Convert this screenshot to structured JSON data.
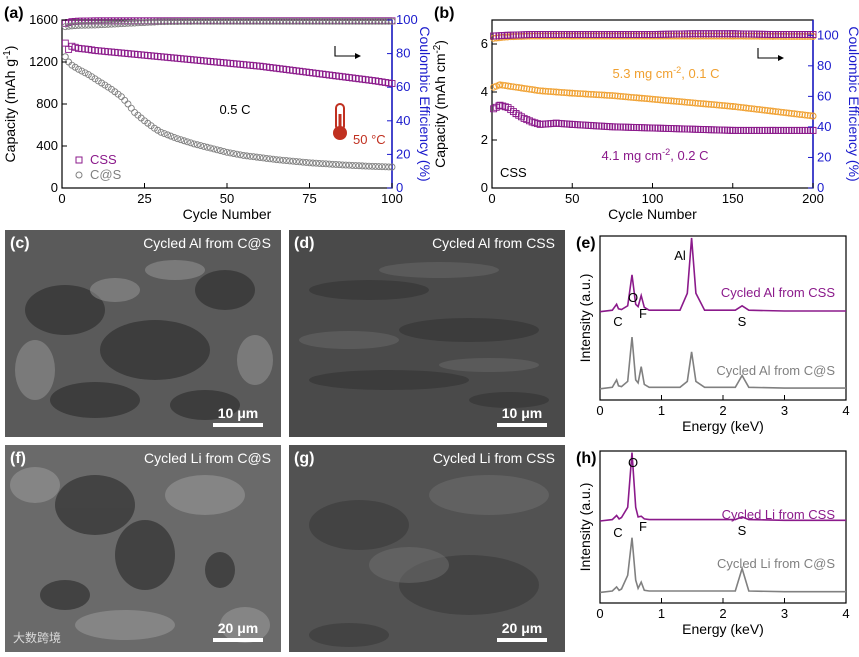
{
  "panel_letters": {
    "a": "(a)",
    "b": "(b)",
    "c": "(c)",
    "d": "(d)",
    "e": "(e)",
    "f": "(f)",
    "g": "(g)",
    "h": "(h)"
  },
  "sem": {
    "c": {
      "label": "Cycled Al from C@S",
      "scale": "10 μm"
    },
    "d": {
      "label": "Cycled Al from CSS",
      "scale": "10 μm"
    },
    "f": {
      "label": "Cycled Li from C@S",
      "scale": "20 μm"
    },
    "g": {
      "label": "Cycled Li from CSS",
      "scale": "20 μm"
    }
  },
  "watermark": "大数跨境",
  "colors": {
    "css": "#8b1a8b",
    "cs": "#808080",
    "orange": "#f0a030",
    "ce_axis": "#1a1acc",
    "temp": "#c03020"
  },
  "chart_data": [
    {
      "id": "a",
      "type": "scatter",
      "xlabel": "Cycle Number",
      "ylabel": "Capacity (mAh g-1)",
      "y2label": "Coulombic Efficiency (%)",
      "xlim": [
        0,
        100
      ],
      "xticks": [
        0,
        25,
        50,
        75,
        100
      ],
      "ylim": [
        0,
        1600
      ],
      "yticks": [
        0,
        400,
        800,
        1200,
        1600
      ],
      "y2lim": [
        0,
        100
      ],
      "y2ticks": [
        0,
        20,
        40,
        60,
        80,
        100
      ],
      "annotations": {
        "rate": "0.5 C",
        "temperature": "50 °C"
      },
      "legend": {
        "position": "bottom-left",
        "items": [
          "CSS",
          "C@S"
        ]
      },
      "series": [
        {
          "name": "CSS",
          "kind": "capacity",
          "marker": "square",
          "x": [
            1,
            2,
            3,
            4,
            5,
            8,
            10,
            15,
            20,
            25,
            30,
            35,
            40,
            45,
            50,
            55,
            60,
            65,
            70,
            75,
            80,
            85,
            90,
            95,
            100
          ],
          "y": [
            1380,
            1320,
            1350,
            1340,
            1330,
            1320,
            1310,
            1295,
            1280,
            1265,
            1250,
            1235,
            1220,
            1205,
            1190,
            1175,
            1160,
            1140,
            1120,
            1100,
            1080,
            1060,
            1040,
            1020,
            995
          ]
        },
        {
          "name": "C@S",
          "kind": "capacity",
          "marker": "circle",
          "x": [
            1,
            2,
            3,
            5,
            8,
            10,
            12,
            15,
            18,
            20,
            22,
            25,
            28,
            30,
            35,
            40,
            45,
            50,
            55,
            60,
            65,
            70,
            75,
            80,
            85,
            90,
            95,
            100
          ],
          "y": [
            1250,
            1200,
            1170,
            1130,
            1080,
            1040,
            1000,
            940,
            870,
            800,
            720,
            640,
            570,
            530,
            470,
            420,
            380,
            340,
            310,
            290,
            270,
            255,
            240,
            230,
            220,
            212,
            205,
            200
          ]
        },
        {
          "name": "CSS",
          "kind": "ce",
          "marker": "square",
          "x": [
            1,
            3,
            5,
            10,
            20,
            30,
            40,
            50,
            60,
            70,
            80,
            90,
            100
          ],
          "y": [
            98,
            99,
            99.3,
            99.5,
            99.5,
            99.5,
            99.5,
            99.5,
            99.5,
            99.5,
            99.5,
            99.5,
            99.5
          ]
        },
        {
          "name": "C@S",
          "kind": "ce",
          "marker": "circle",
          "x": [
            1,
            3,
            5,
            10,
            15,
            20,
            25,
            30,
            40,
            50,
            60,
            70,
            80,
            90,
            100
          ],
          "y": [
            96,
            96.5,
            96.8,
            97,
            97.5,
            98,
            98.5,
            99,
            99.2,
            99.2,
            99.2,
            99.2,
            99.2,
            99.2,
            99.2
          ]
        }
      ]
    },
    {
      "id": "b",
      "type": "scatter",
      "xlabel": "Cycle Number",
      "ylabel": "Capacity (mAh cm-2)",
      "y2label": "Coulombic Efficiency (%)",
      "xlim": [
        0,
        200
      ],
      "xticks": [
        0,
        50,
        100,
        150,
        200
      ],
      "ylim": [
        0,
        7
      ],
      "yticks": [
        0,
        2,
        4,
        6
      ],
      "y2lim": [
        0,
        110
      ],
      "y2ticks": [
        0,
        20,
        40,
        60,
        80,
        100
      ],
      "annotations": {
        "high_loading": "5.3 mg cm-2, 0.1 C",
        "low_loading": "4.1 mg cm-2, 0.2 C",
        "material": "CSS"
      },
      "series": [
        {
          "name": "5.3 mg cm-2, 0.1 C",
          "kind": "capacity",
          "marker": "circle",
          "x": [
            1,
            5,
            10,
            20,
            30,
            50,
            75,
            100,
            125,
            150,
            175,
            200
          ],
          "y": [
            4.2,
            4.3,
            4.25,
            4.15,
            4.05,
            3.95,
            3.85,
            3.7,
            3.55,
            3.4,
            3.2,
            3.0
          ]
        },
        {
          "name": "4.1 mg cm-2, 0.2 C",
          "kind": "capacity",
          "marker": "square",
          "x": [
            1,
            5,
            10,
            15,
            20,
            25,
            30,
            40,
            50,
            75,
            100,
            125,
            150,
            175,
            200
          ],
          "y": [
            3.3,
            3.45,
            3.35,
            3.1,
            2.9,
            2.75,
            2.65,
            2.7,
            2.65,
            2.55,
            2.5,
            2.45,
            2.4,
            2.4,
            2.4
          ]
        },
        {
          "name": "5.3 mg cm-2, 0.1 C",
          "kind": "ce",
          "marker": "circle",
          "x": [
            1,
            10,
            25,
            50,
            75,
            100,
            125,
            150,
            175,
            200
          ],
          "y": [
            98,
            99,
            99.5,
            99.5,
            99.5,
            99.5,
            99.5,
            99.5,
            99.3,
            99.2
          ]
        },
        {
          "name": "4.1 mg cm-2, 0.2 C",
          "kind": "ce",
          "marker": "square",
          "x": [
            1,
            10,
            25,
            50,
            75,
            100,
            125,
            150,
            175,
            200
          ],
          "y": [
            99.5,
            100,
            100.5,
            100.5,
            100.5,
            100.5,
            101,
            101,
            100.5,
            100.5
          ]
        }
      ]
    },
    {
      "id": "e",
      "type": "line",
      "xlabel": "Energy (keV)",
      "ylabel": "Intensity (a.u.)",
      "xlim": [
        0,
        4
      ],
      "xticks": [
        0,
        1,
        2,
        3,
        4
      ],
      "peak_labels": [
        "C",
        "O",
        "F",
        "Al",
        "S"
      ],
      "series": [
        {
          "name": "Cycled Al from CSS",
          "x": [
            0,
            0.2,
            0.27,
            0.3,
            0.35,
            0.45,
            0.52,
            0.58,
            0.62,
            0.67,
            0.72,
            0.8,
            1.3,
            1.42,
            1.49,
            1.56,
            1.7,
            2.2,
            2.31,
            2.42,
            3,
            4
          ],
          "y": [
            0,
            0.02,
            0.1,
            0.04,
            0.03,
            0.08,
            0.5,
            0.1,
            0.07,
            0.22,
            0.06,
            0.02,
            0.02,
            0.25,
            1.0,
            0.25,
            0.02,
            0.02,
            0.08,
            0.02,
            0.01,
            0.01
          ]
        },
        {
          "name": "Cycled Al from C@S",
          "x": [
            0,
            0.2,
            0.27,
            0.3,
            0.35,
            0.45,
            0.52,
            0.58,
            0.62,
            0.67,
            0.72,
            0.8,
            1.3,
            1.42,
            1.49,
            1.56,
            1.7,
            2.2,
            2.31,
            2.42,
            3,
            4
          ],
          "y": [
            0,
            0.02,
            0.12,
            0.04,
            0.03,
            0.1,
            0.7,
            0.12,
            0.08,
            0.3,
            0.06,
            0.02,
            0.02,
            0.1,
            0.5,
            0.1,
            0.02,
            0.02,
            0.18,
            0.02,
            0.01,
            0.01
          ]
        }
      ]
    },
    {
      "id": "h",
      "type": "line",
      "xlabel": "Energy (keV)",
      "ylabel": "Intensity (a.u.)",
      "xlim": [
        0,
        4
      ],
      "xticks": [
        0,
        1,
        2,
        3,
        4
      ],
      "peak_labels": [
        "O",
        "C",
        "F",
        "S"
      ],
      "series": [
        {
          "name": "Cycled Li from CSS",
          "x": [
            0,
            0.2,
            0.27,
            0.31,
            0.35,
            0.45,
            0.52,
            0.58,
            0.62,
            0.67,
            0.72,
            0.8,
            2.2,
            2.31,
            2.42,
            3,
            4
          ],
          "y": [
            0,
            0.02,
            0.08,
            0.03,
            0.05,
            0.2,
            1.0,
            0.2,
            0.06,
            0.07,
            0.03,
            0.02,
            0.02,
            0.06,
            0.02,
            0.01,
            0.01
          ]
        },
        {
          "name": "Cycled Li from C@S",
          "x": [
            0,
            0.2,
            0.27,
            0.31,
            0.35,
            0.45,
            0.52,
            0.58,
            0.62,
            0.67,
            0.72,
            0.8,
            2.2,
            2.31,
            2.42,
            3,
            4
          ],
          "y": [
            0,
            0.02,
            0.08,
            0.03,
            0.05,
            0.25,
            0.8,
            0.18,
            0.06,
            0.15,
            0.03,
            0.02,
            0.02,
            0.35,
            0.02,
            0.01,
            0.01
          ]
        }
      ]
    }
  ]
}
